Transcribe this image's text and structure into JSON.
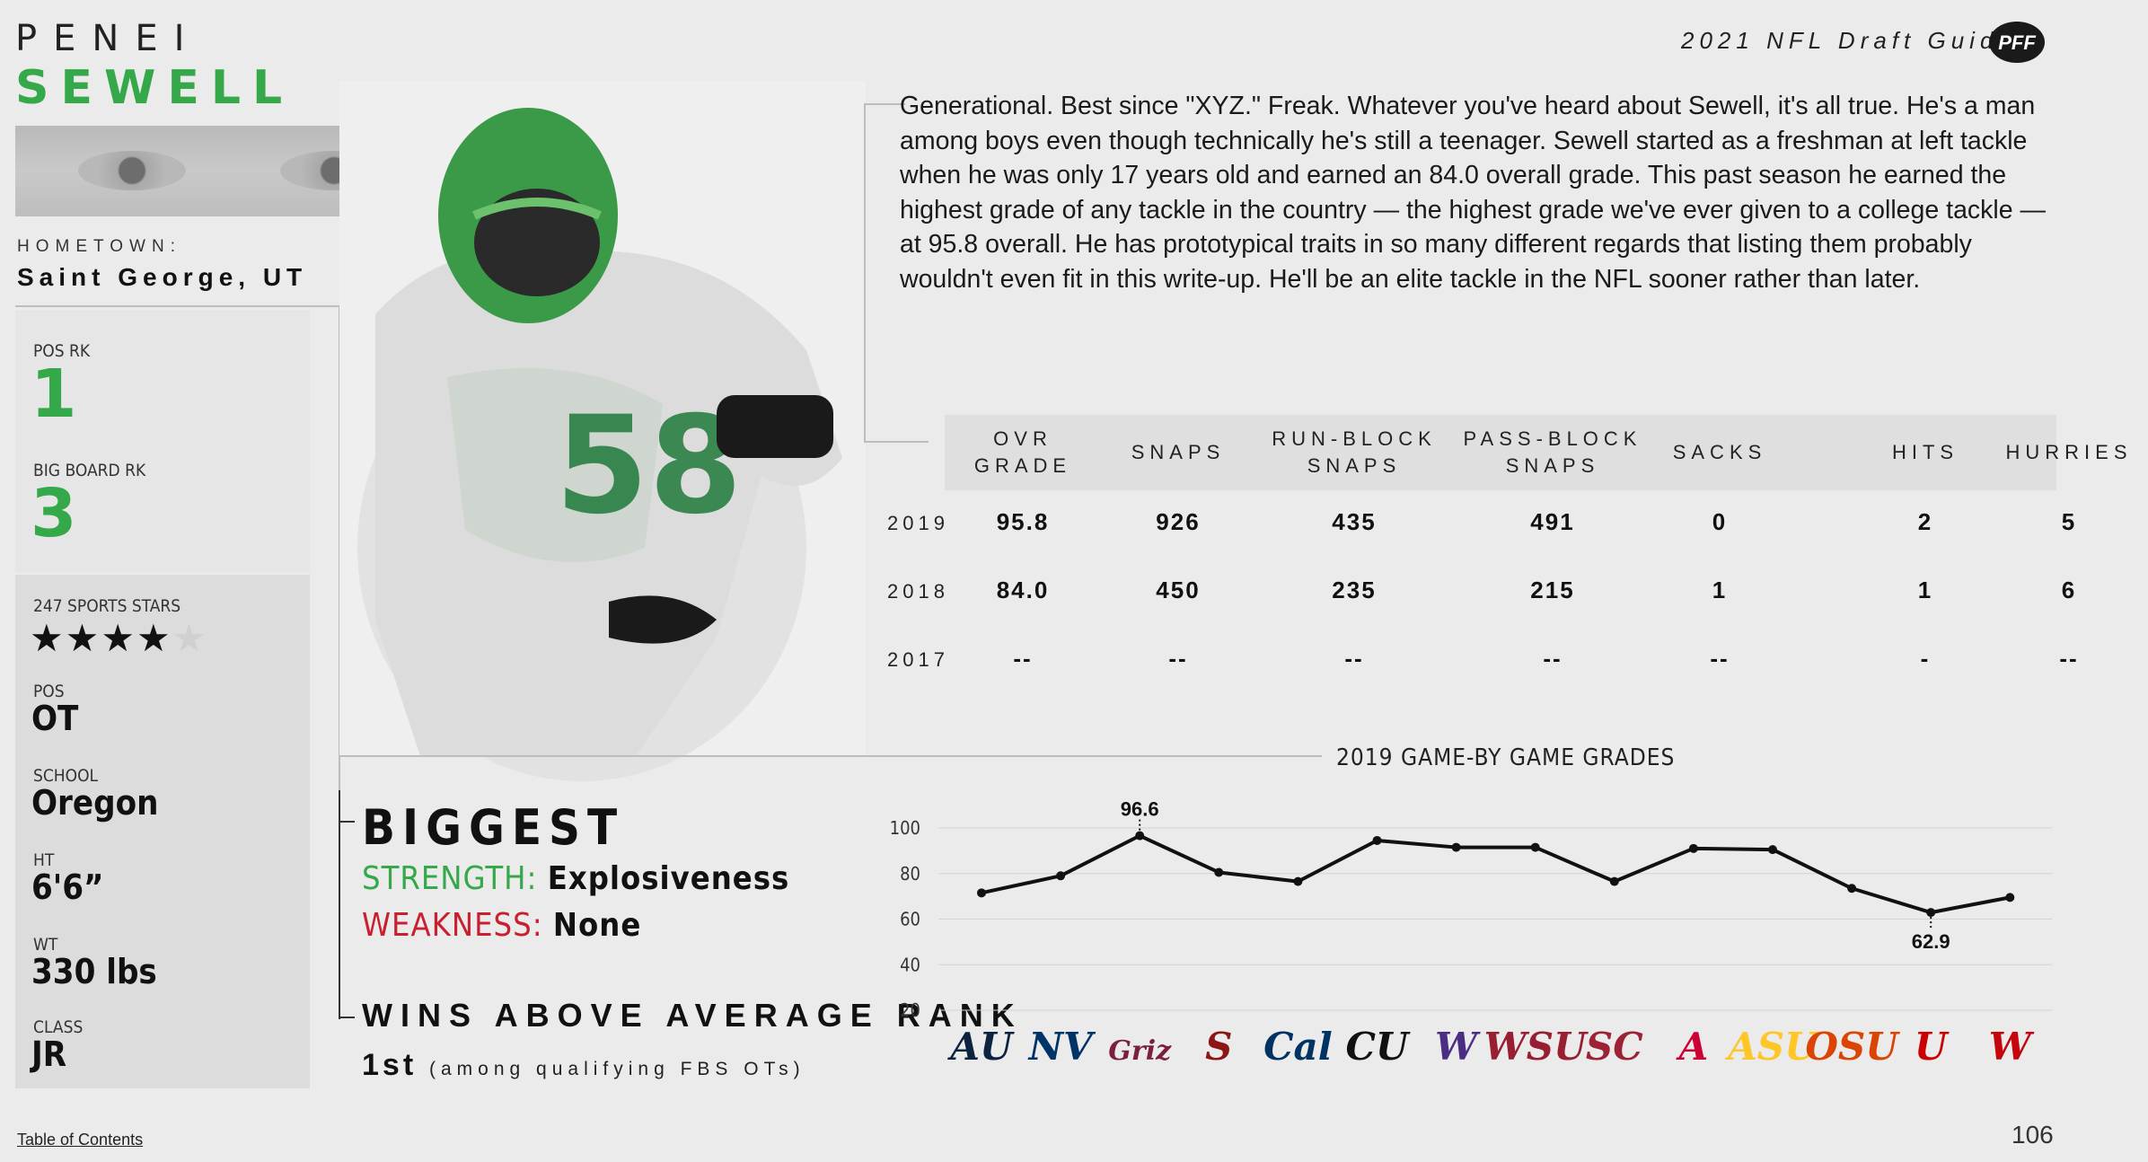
{
  "player": {
    "first_name": "PENEI",
    "last_name": "SEWELL",
    "hometown_label": "HOMETOWN:",
    "hometown": "Saint George, UT"
  },
  "header": {
    "guide_title": "2021 NFL Draft Guide",
    "brand": "PFF"
  },
  "ranks": {
    "pos_rk_label": "POS RK",
    "pos_rk": "1",
    "board_rk_label": "BIG BOARD RK",
    "board_rk": "3"
  },
  "info": {
    "stars_label": "247 SPORTS STARS",
    "stars_filled": 4,
    "stars_total": 5,
    "pos_label": "POS",
    "pos": "OT",
    "school_label": "SCHOOL",
    "school": "Oregon",
    "ht_label": "HT",
    "ht": "6'6”",
    "wt_label": "WT",
    "wt": "330 lbs",
    "class_label": "CLASS",
    "class": "JR"
  },
  "bio": "Generational. Best since \"XYZ.\" Freak. Whatever you've heard about Sewell, it's all true. He's a man among boys even though technically he's still a teenager. Sewell started as a freshman at left tackle when he was only 17 years old and earned an 84.0 overall grade. This past season he earned the highest grade of any tackle in the country — the highest grade we've ever given to a college tackle — at 95.8 overall. He has prototypical traits in so many different regards that listing them probably wouldn't even fit in this write-up. He'll be an elite tackle in the NFL sooner rather than later.",
  "stats": {
    "headers": [
      "OVR\nGRADE",
      "SNAPS",
      "RUN-BLOCK\nSNAPS",
      "PASS-BLOCK\nSNAPS",
      "SACKS",
      "HITS",
      "HURRIES"
    ],
    "rows": [
      {
        "year": "2019",
        "values": [
          "95.8",
          "926",
          "435",
          "491",
          "0",
          "2",
          "5"
        ]
      },
      {
        "year": "2018",
        "values": [
          "84.0",
          "450",
          "235",
          "215",
          "1",
          "1",
          "6"
        ]
      },
      {
        "year": "2017",
        "values": [
          "--",
          "--",
          "--",
          "--",
          "--",
          "-",
          "--"
        ]
      }
    ]
  },
  "strengths": {
    "title": "BIGGEST",
    "strength_label": "STRENGTH:",
    "strength": "Explosiveness",
    "weakness_label": "WEAKNESS:",
    "weakness": "None"
  },
  "waa": {
    "title": "WINS ABOVE AVERAGE RANK",
    "rank": "1st",
    "note": "(among qualifying FBS OTs)"
  },
  "footer": {
    "toc": "Table of Contents",
    "page": "106"
  },
  "chart_data": {
    "type": "line",
    "title": "2019 GAME-BY GAME GRADES",
    "yticks": [
      "100",
      "80",
      "60",
      "40",
      "20"
    ],
    "ylim": [
      20,
      100
    ],
    "categories": [
      "AU",
      "NV",
      "Griz",
      "S",
      "Cal",
      "CU",
      "W",
      "WSU",
      "SC",
      "A",
      "ASU",
      "OSU",
      "U",
      "W"
    ],
    "values": [
      71.5,
      79.0,
      96.6,
      80.5,
      76.5,
      94.5,
      91.5,
      91.5,
      76.5,
      91.0,
      90.5,
      73.5,
      62.9,
      69.5
    ],
    "labeled_points": [
      {
        "index": 2,
        "label": "96.6"
      },
      {
        "index": 12,
        "label": "62.9"
      }
    ],
    "grid": true,
    "logo_colors": [
      "#0c2340",
      "#003366",
      "#7a1f3d",
      "#8c1515",
      "#003262",
      "#111111",
      "#4b2e83",
      "#981e32",
      "#9d2235",
      "#cc0033",
      "#ffc627",
      "#dc4405",
      "#cc0000",
      "#c5050c"
    ]
  }
}
